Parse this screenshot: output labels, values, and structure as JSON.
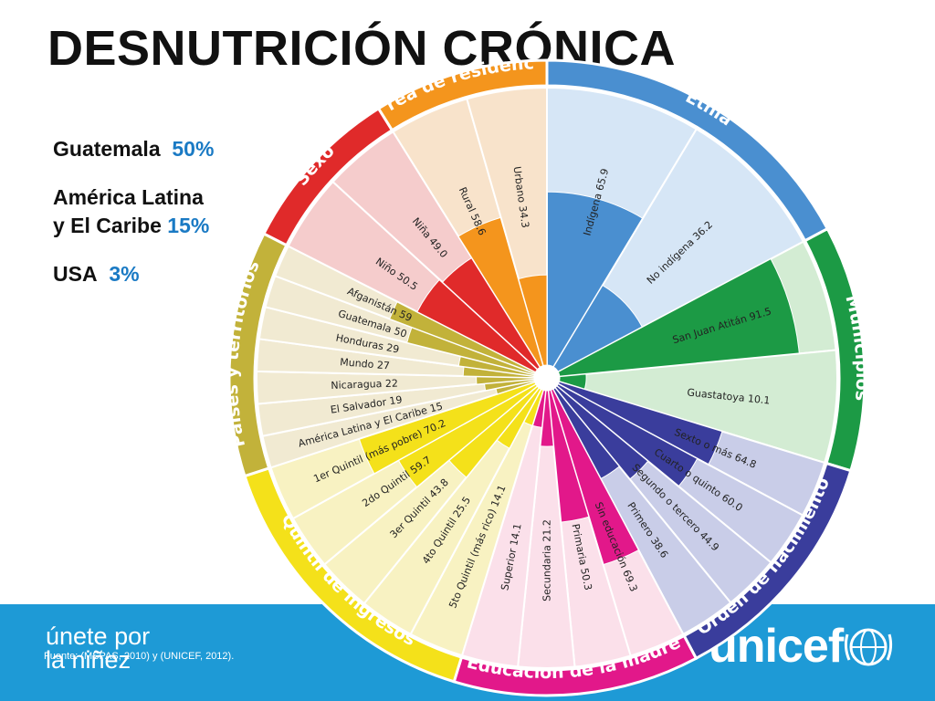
{
  "title": "DESNUTRICIÓN CRÓNICA",
  "stats": {
    "guatemala": {
      "label": "Guatemala",
      "value": "50%"
    },
    "latam": {
      "label_line1": "América Latina",
      "label_line2": "y El Caribe",
      "value": "15%"
    },
    "usa": {
      "label": "USA",
      "value": "3%"
    }
  },
  "footer": {
    "tagline_line1": "únete por",
    "tagline_line2": "la niñez",
    "source": "Fuente: (MSPAS, 2010) y (UNICEF, 2012).",
    "logo_text": "unicef"
  },
  "chart_data": {
    "type": "radial-bar",
    "scale_max": 100,
    "groups": [
      {
        "name": "Etnia",
        "color": "#4a8fd0",
        "light": "#d6e6f6",
        "items": [
          {
            "label": "Indígena",
            "value": 65.9,
            "text": "Indígena 65.9"
          },
          {
            "label": "No indígena",
            "value": 36.2,
            "text": "No indígena 36.2"
          }
        ]
      },
      {
        "name": "Municipios",
        "color": "#1c9a45",
        "light": "#d3ecd3",
        "items": [
          {
            "label": "San Juan Atitán",
            "value": 91.5,
            "text": "San Juan Atitán 91.5"
          },
          {
            "label": "Guastatoya",
            "value": 10.1,
            "text": "Guastatoya 10.1"
          }
        ]
      },
      {
        "name": "Orden de nacimiento",
        "color": "#3a3d9c",
        "light": "#c9cde8",
        "items": [
          {
            "label": "Sexto o más",
            "value": 64.8,
            "text": "Sexto o más 64.8"
          },
          {
            "label": "Cuarto o quinto",
            "value": 60.0,
            "text": "Cuarto o quinto 60.0"
          },
          {
            "label": "Segundo o tercero",
            "value": 44.9,
            "text": "Segundo o tercero 44.9"
          },
          {
            "label": "Primero",
            "value": 38.6,
            "text": "Primero 38.6"
          }
        ]
      },
      {
        "name": "Educación de la madre",
        "color": "#e2188a",
        "light": "#fbe0ea",
        "items": [
          {
            "label": "Sin educación",
            "value": 69.3,
            "text": "Sin educación 69.3"
          },
          {
            "label": "Primaria",
            "value": 50.3,
            "text": "Primaria 50.3"
          },
          {
            "label": "Secundaria",
            "value": 21.2,
            "text": "Secundaria 21.2"
          },
          {
            "label": "Superior",
            "value": 14.1,
            "text": "Superior 14.1"
          }
        ]
      },
      {
        "name": "Quintil de ingresos",
        "color": "#f4e11a",
        "light": "#f8f2c2",
        "items": [
          {
            "label": "5to Quintil (más rico)",
            "value": 14.1,
            "text": "5to Quintil (más rico) 14.1"
          },
          {
            "label": "4to Quintil",
            "value": 25.5,
            "text": "4to Quintil 25.5"
          },
          {
            "label": "3er Quintil",
            "value": 43.8,
            "text": "3er Quintil 43.8"
          },
          {
            "label": "2do Quintil",
            "value": 59.7,
            "text": "2do Quintil 59.7"
          },
          {
            "label": "1er Quintil (más pobre)",
            "value": 70.2,
            "text": "1er Quintil (más pobre) 70.2"
          }
        ]
      },
      {
        "name": "Países y territorios",
        "color": "#c2b23a",
        "light": "#f1ead2",
        "items": [
          {
            "label": "América Latina y El Caribe",
            "value": 15,
            "text": "América Latina y El Caribe 15"
          },
          {
            "label": "El Salvador",
            "value": 19,
            "text": "El Salvador 19"
          },
          {
            "label": "Nicaragua",
            "value": 22,
            "text": "Nicaragua 22"
          },
          {
            "label": "Mundo",
            "value": 27,
            "text": "Mundo 27"
          },
          {
            "label": "Honduras",
            "value": 29,
            "text": "Honduras 29"
          },
          {
            "label": "Guatemala",
            "value": 50,
            "text": "Guatemala 50"
          },
          {
            "label": "Afganistán",
            "value": 59,
            "text": "Afganistán 59"
          }
        ]
      },
      {
        "name": "Sexo",
        "color": "#e02a2a",
        "light": "#f5cccc",
        "items": [
          {
            "label": "Niño",
            "value": 50.5,
            "text": "Niño 50.5"
          },
          {
            "label": "Niña",
            "value": 49.0,
            "text": "Niña 49.0"
          }
        ]
      },
      {
        "name": "Área de residencia",
        "color": "#f4951d",
        "light": "#f8e3cb",
        "items": [
          {
            "label": "Rural",
            "value": 58.6,
            "text": "Rural 58.6"
          },
          {
            "label": "Urbano",
            "value": 34.3,
            "text": "Urbano 34.3"
          }
        ]
      }
    ]
  }
}
